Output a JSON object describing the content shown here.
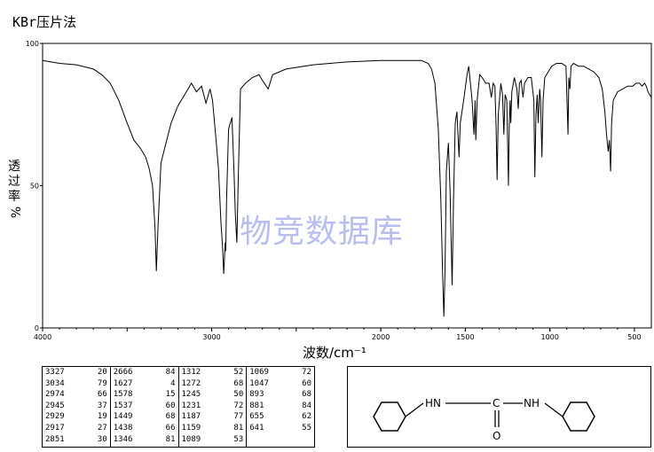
{
  "title": "KBr压片法",
  "watermark": "物竞数据库",
  "chart_data": {
    "type": "line",
    "title": "KBr压片法",
    "xlabel": "波数/cm⁻¹",
    "ylabel_lines": [
      "透",
      "过",
      "率",
      "%"
    ],
    "x_range": [
      4000,
      400
    ],
    "x_reversed": true,
    "ylim": [
      0,
      100
    ],
    "x_ticks": [
      4000,
      3000,
      2000,
      1500,
      1000,
      500
    ],
    "y_ticks": [
      0,
      50,
      100
    ],
    "line_color": "#000000",
    "series": [
      {
        "points": [
          [
            4000,
            94
          ],
          [
            3900,
            93
          ],
          [
            3800,
            92.5
          ],
          [
            3700,
            91
          ],
          [
            3650,
            89
          ],
          [
            3600,
            86
          ],
          [
            3550,
            80
          ],
          [
            3500,
            72
          ],
          [
            3460,
            66
          ],
          [
            3420,
            63
          ],
          [
            3390,
            60
          ],
          [
            3370,
            56
          ],
          [
            3350,
            50
          ],
          [
            3335,
            35
          ],
          [
            3327,
            20
          ],
          [
            3318,
            35
          ],
          [
            3300,
            58
          ],
          [
            3270,
            65
          ],
          [
            3240,
            72
          ],
          [
            3200,
            78
          ],
          [
            3150,
            83
          ],
          [
            3120,
            86
          ],
          [
            3090,
            83
          ],
          [
            3060,
            85
          ],
          [
            3034,
            79
          ],
          [
            3010,
            84
          ],
          [
            2995,
            80
          ],
          [
            2974,
            66
          ],
          [
            2960,
            56
          ],
          [
            2945,
            37
          ],
          [
            2935,
            28
          ],
          [
            2929,
            19
          ],
          [
            2920,
            30
          ],
          [
            2917,
            27
          ],
          [
            2912,
            45
          ],
          [
            2900,
            70
          ],
          [
            2880,
            74
          ],
          [
            2868,
            55
          ],
          [
            2860,
            40
          ],
          [
            2851,
            30
          ],
          [
            2842,
            55
          ],
          [
            2830,
            84
          ],
          [
            2800,
            86
          ],
          [
            2760,
            88
          ],
          [
            2720,
            89
          ],
          [
            2700,
            87
          ],
          [
            2666,
            84
          ],
          [
            2640,
            89
          ],
          [
            2560,
            91
          ],
          [
            2400,
            92.5
          ],
          [
            2200,
            93.5
          ],
          [
            2000,
            94
          ],
          [
            1900,
            94
          ],
          [
            1800,
            94
          ],
          [
            1760,
            94
          ],
          [
            1720,
            93
          ],
          [
            1700,
            91
          ],
          [
            1680,
            86
          ],
          [
            1660,
            70
          ],
          [
            1645,
            45
          ],
          [
            1635,
            20
          ],
          [
            1627,
            4
          ],
          [
            1620,
            20
          ],
          [
            1612,
            55
          ],
          [
            1600,
            65
          ],
          [
            1590,
            48
          ],
          [
            1578,
            15
          ],
          [
            1570,
            45
          ],
          [
            1560,
            72
          ],
          [
            1550,
            76
          ],
          [
            1537,
            60
          ],
          [
            1530,
            72
          ],
          [
            1510,
            80
          ],
          [
            1490,
            89
          ],
          [
            1480,
            92
          ],
          [
            1470,
            86
          ],
          [
            1460,
            80
          ],
          [
            1449,
            68
          ],
          [
            1442,
            80
          ],
          [
            1438,
            66
          ],
          [
            1430,
            80
          ],
          [
            1415,
            89
          ],
          [
            1400,
            88
          ],
          [
            1380,
            86
          ],
          [
            1360,
            86
          ],
          [
            1346,
            81
          ],
          [
            1335,
            86
          ],
          [
            1325,
            85
          ],
          [
            1318,
            70
          ],
          [
            1312,
            52
          ],
          [
            1305,
            75
          ],
          [
            1290,
            86
          ],
          [
            1280,
            82
          ],
          [
            1272,
            68
          ],
          [
            1265,
            82
          ],
          [
            1255,
            80
          ],
          [
            1245,
            50
          ],
          [
            1240,
            72
          ],
          [
            1235,
            80
          ],
          [
            1231,
            72
          ],
          [
            1225,
            83
          ],
          [
            1210,
            88
          ],
          [
            1195,
            84
          ],
          [
            1187,
            77
          ],
          [
            1180,
            86
          ],
          [
            1170,
            87
          ],
          [
            1159,
            81
          ],
          [
            1150,
            86
          ],
          [
            1130,
            88
          ],
          [
            1110,
            88
          ],
          [
            1095,
            80
          ],
          [
            1089,
            53
          ],
          [
            1082,
            75
          ],
          [
            1075,
            82
          ],
          [
            1069,
            72
          ],
          [
            1060,
            84
          ],
          [
            1055,
            80
          ],
          [
            1047,
            60
          ],
          [
            1040,
            80
          ],
          [
            1030,
            88
          ],
          [
            1010,
            90
          ],
          [
            990,
            92
          ],
          [
            960,
            93
          ],
          [
            930,
            93
          ],
          [
            905,
            92
          ],
          [
            893,
            68
          ],
          [
            888,
            88
          ],
          [
            881,
            84
          ],
          [
            875,
            92
          ],
          [
            860,
            93
          ],
          [
            830,
            92
          ],
          [
            800,
            92
          ],
          [
            770,
            91
          ],
          [
            740,
            90
          ],
          [
            710,
            88
          ],
          [
            690,
            84
          ],
          [
            675,
            76
          ],
          [
            665,
            68
          ],
          [
            655,
            62
          ],
          [
            648,
            66
          ],
          [
            641,
            55
          ],
          [
            635,
            72
          ],
          [
            625,
            80
          ],
          [
            600,
            83
          ],
          [
            570,
            84
          ],
          [
            540,
            85
          ],
          [
            510,
            85
          ],
          [
            490,
            86
          ],
          [
            470,
            86
          ],
          [
            455,
            85
          ],
          [
            440,
            86
          ],
          [
            430,
            85
          ],
          [
            420,
            83
          ],
          [
            410,
            82
          ],
          [
            400,
            81
          ]
        ]
      }
    ]
  },
  "peak_table": {
    "columns": [
      [
        [
          "3327",
          "20"
        ],
        [
          "3034",
          "79"
        ],
        [
          "2974",
          "66"
        ],
        [
          "2945",
          "37"
        ],
        [
          "2929",
          "19"
        ],
        [
          "2917",
          "27"
        ],
        [
          "2851",
          "30"
        ]
      ],
      [
        [
          "2666",
          "84"
        ],
        [
          "1627",
          "4"
        ],
        [
          "1578",
          "15"
        ],
        [
          "1537",
          "60"
        ],
        [
          "1449",
          "68"
        ],
        [
          "1438",
          "66"
        ],
        [
          "1346",
          "81"
        ]
      ],
      [
        [
          "1312",
          "52"
        ],
        [
          "1272",
          "68"
        ],
        [
          "1245",
          "50"
        ],
        [
          "1231",
          "72"
        ],
        [
          "1187",
          "77"
        ],
        [
          "1159",
          "81"
        ],
        [
          "1089",
          "53"
        ]
      ],
      [
        [
          "1069",
          "72"
        ],
        [
          "1047",
          "60"
        ],
        [
          "893",
          "68"
        ],
        [
          "881",
          "84"
        ],
        [
          "655",
          "62"
        ],
        [
          "641",
          "55"
        ]
      ]
    ]
  },
  "structure": {
    "nh_left": "HN",
    "carbon": "C",
    "nh_right": "NH",
    "oxygen": "O"
  }
}
